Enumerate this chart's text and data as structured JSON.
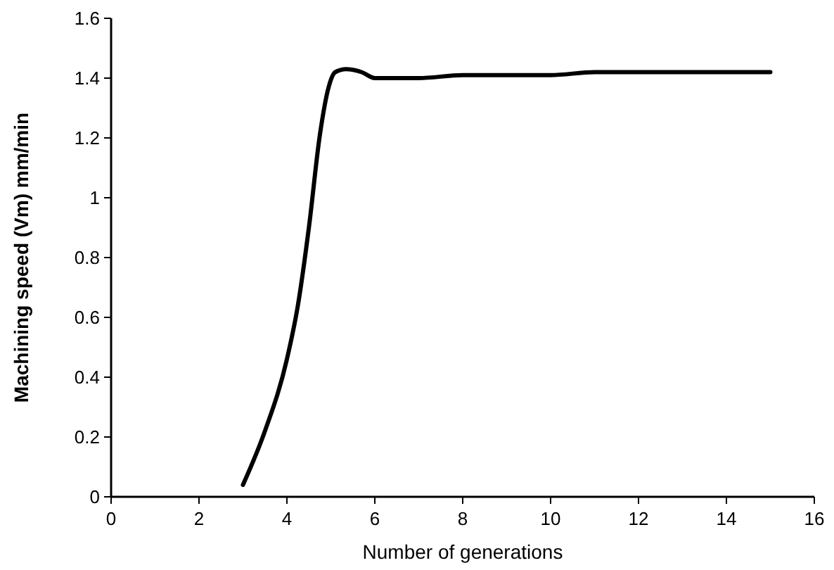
{
  "chart_data": {
    "type": "line",
    "xlabel": "Number of generations",
    "ylabel": "Machining speed (Vm) mm/min",
    "x": [
      3,
      3.5,
      4,
      4.25,
      4.5,
      4.75,
      4.95,
      5.1,
      5.35,
      5.7,
      6,
      7,
      8,
      10,
      11,
      15
    ],
    "series": [
      {
        "color": "#000000",
        "values": [
          0.04,
          0.22,
          0.46,
          0.64,
          0.9,
          1.21,
          1.37,
          1.42,
          1.43,
          1.42,
          1.4,
          1.4,
          1.41,
          1.41,
          1.42,
          1.42
        ]
      }
    ],
    "xlim": [
      0,
      16
    ],
    "xticks": [
      0,
      2,
      4,
      6,
      8,
      10,
      12,
      14,
      16
    ],
    "ylim": [
      0,
      1.6
    ],
    "yticks": [
      0,
      0.2,
      0.4,
      0.6,
      0.8,
      1,
      1.2,
      1.4,
      1.6
    ],
    "grid": false,
    "marker": "none",
    "line_style": "solid"
  }
}
